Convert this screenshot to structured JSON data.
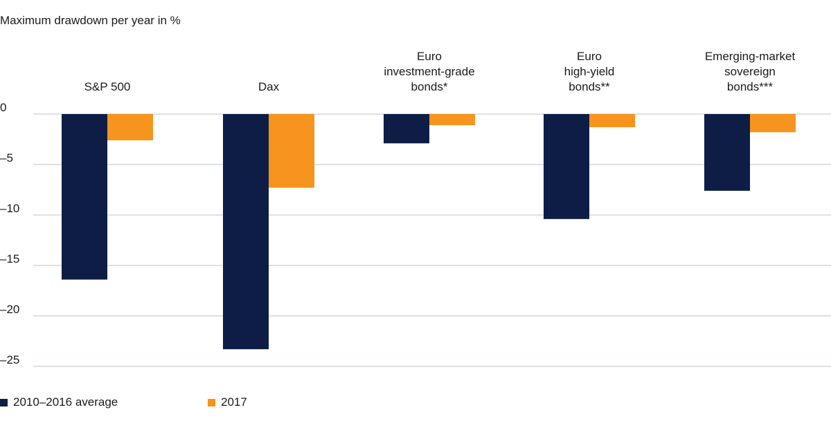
{
  "chart_data": {
    "type": "bar",
    "title": "Maximum drawdown per year in %",
    "categories": [
      [
        "S&P 500"
      ],
      [
        "Dax"
      ],
      [
        "Euro",
        "investment-grade",
        "bonds*"
      ],
      [
        "Euro",
        "high-yield",
        "bonds**"
      ],
      [
        "Emerging-market",
        "sovereign",
        "bonds***"
      ]
    ],
    "series": [
      {
        "name": "2010–2016 average",
        "color": "#0d1d45",
        "values": [
          -16.4,
          -23.3,
          -2.9,
          -10.4,
          -7.6
        ]
      },
      {
        "name": "2017",
        "color": "#f7941d",
        "values": [
          -2.6,
          -7.3,
          -1.1,
          -1.3,
          -1.8
        ]
      }
    ],
    "yticks": [
      0,
      -5,
      -10,
      -15,
      -20,
      -25
    ],
    "ytick_labels": [
      "0",
      "–5",
      "–10",
      "–15",
      "–20",
      "–25"
    ],
    "ylim": [
      -25,
      0
    ],
    "grid": true,
    "legend_position": "bottom-left",
    "colors": {
      "grid": "#b9c3cf",
      "text": "#1a1a1a"
    }
  }
}
